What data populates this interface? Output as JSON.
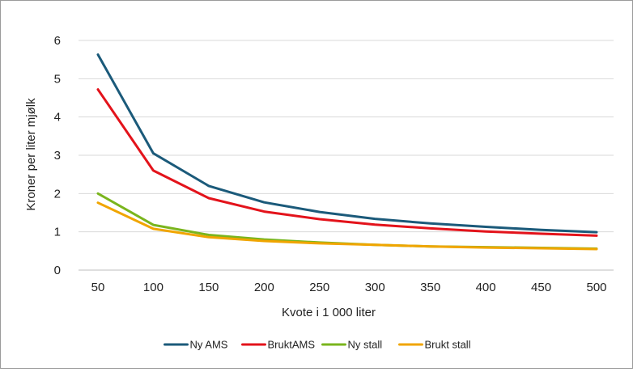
{
  "chart_data": {
    "type": "line",
    "title": "",
    "xlabel": "Kvote i 1 000 liter",
    "ylabel": "Kroner per liter mjølk",
    "x": [
      50,
      100,
      150,
      200,
      250,
      300,
      350,
      400,
      450,
      500
    ],
    "xticks": [
      "50",
      "100",
      "150",
      "200",
      "250",
      "300",
      "350",
      "400",
      "450",
      "500"
    ],
    "ylim": [
      0,
      6
    ],
    "yticks": [
      "0",
      "1",
      "2",
      "3",
      "4",
      "5",
      "6"
    ],
    "grid": "horizontal",
    "legend_position": "bottom",
    "series": [
      {
        "name": "Ny AMS",
        "color": "#1b5a7a",
        "values": [
          5.63,
          3.05,
          2.2,
          1.77,
          1.52,
          1.34,
          1.22,
          1.13,
          1.05,
          0.99
        ]
      },
      {
        "name": "BruktAMS",
        "color": "#e3131b",
        "values": [
          4.72,
          2.6,
          1.88,
          1.53,
          1.33,
          1.19,
          1.09,
          1.01,
          0.95,
          0.9
        ]
      },
      {
        "name": "Ny stall",
        "color": "#7ab51d",
        "values": [
          2.0,
          1.18,
          0.92,
          0.8,
          0.72,
          0.66,
          0.62,
          0.6,
          0.58,
          0.56
        ]
      },
      {
        "name": "Brukt stall",
        "color": "#f0a500",
        "values": [
          1.76,
          1.08,
          0.86,
          0.76,
          0.7,
          0.66,
          0.62,
          0.59,
          0.57,
          0.55
        ]
      }
    ]
  }
}
